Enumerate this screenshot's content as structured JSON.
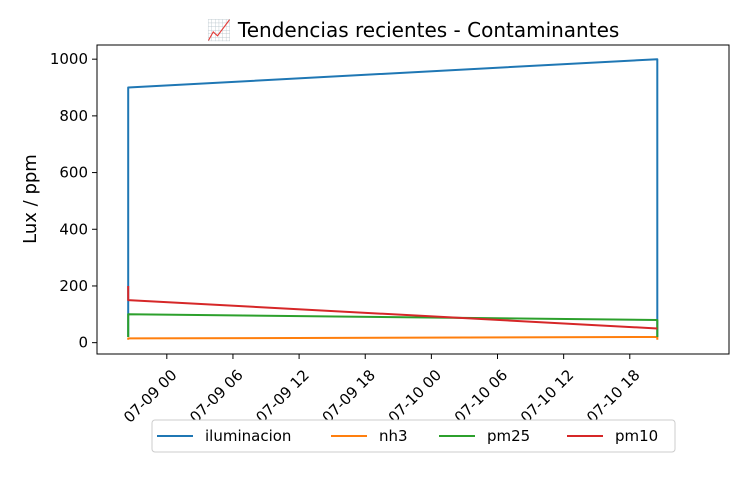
{
  "chart_data": {
    "type": "line",
    "title": "📈 Tendencias recientes - Contaminantes",
    "xlabel": "",
    "ylabel": "Lux / ppm",
    "ylim": [
      -40,
      1050
    ],
    "xlim": [
      "2024-07-08 17:40",
      "2024-07-11 03:00"
    ],
    "y_ticks": [
      0,
      200,
      400,
      600,
      800,
      1000
    ],
    "x_ticks": [
      {
        "value": "2024-07-09 00:00",
        "label": "07-09 00"
      },
      {
        "value": "2024-07-09 06:00",
        "label": "07-09 06"
      },
      {
        "value": "2024-07-09 12:00",
        "label": "07-09 12"
      },
      {
        "value": "2024-07-09 18:00",
        "label": "07-09 18"
      },
      {
        "value": "2024-07-10 00:00",
        "label": "07-10 00"
      },
      {
        "value": "2024-07-10 06:00",
        "label": "07-10 06"
      },
      {
        "value": "2024-07-10 12:00",
        "label": "07-10 12"
      },
      {
        "value": "2024-07-10 18:00",
        "label": "07-10 18"
      }
    ],
    "grid": false,
    "legend_position": "bottom-center",
    "series": [
      {
        "name": "iluminacion",
        "color": "#1f77b4",
        "points": [
          [
            "2024-07-08 20:30",
            20
          ],
          [
            "2024-07-08 20:30",
            900
          ],
          [
            "2024-07-10 20:30",
            1000
          ],
          [
            "2024-07-10 20:30",
            20
          ]
        ]
      },
      {
        "name": "nh3",
        "color": "#ff7f0e",
        "points": [
          [
            "2024-07-08 20:30",
            10
          ],
          [
            "2024-07-08 20:30",
            15
          ],
          [
            "2024-07-10 20:30",
            20
          ],
          [
            "2024-07-10 20:30",
            10
          ]
        ]
      },
      {
        "name": "pm25",
        "color": "#2ca02c",
        "points": [
          [
            "2024-07-08 20:30",
            20
          ],
          [
            "2024-07-08 20:30",
            100
          ],
          [
            "2024-07-10 20:30",
            80
          ],
          [
            "2024-07-10 20:30",
            20
          ]
        ]
      },
      {
        "name": "pm10",
        "color": "#d62728",
        "points": [
          [
            "2024-07-08 20:30",
            200
          ],
          [
            "2024-07-08 20:30",
            150
          ],
          [
            "2024-07-10 20:30",
            50
          ],
          [
            "2024-07-10 20:30",
            50
          ]
        ]
      }
    ]
  }
}
